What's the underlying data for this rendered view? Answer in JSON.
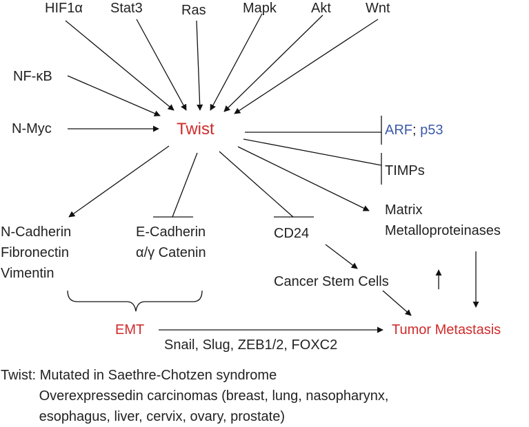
{
  "upstream": [
    "HIF1α",
    "Stat3",
    "Ras",
    "Mapk",
    "Akt",
    "Wnt"
  ],
  "side_inputs": [
    "NF-κB",
    "N-Myc"
  ],
  "center": "Twist",
  "inhibited_targets": {
    "arf_p53_parts": [
      "ARF",
      "; ",
      "p53"
    ],
    "timps": "TIMPs"
  },
  "targets": {
    "n_cadherin_group": "N-Cadherin\nFibronectin\nVimentin",
    "e_cadherin_group": "E-Cadherin\nα/γ Catenin",
    "cd24": "CD24",
    "mmp": "Matrix\nMetalloproteinases",
    "csc": "Cancer Stem Cells"
  },
  "emt": "EMT",
  "emt_factors": "Snail, Slug, ZEB1/2, FOXC2",
  "outcome": "Tumor Metastasis",
  "note": "Twist: Mutated in Saethre-Chotzen syndrome\n          Overexpressedin carcinomas (breast, lung, nasopharynx,\n          esophagus, liver, cervix, ovary, prostate)",
  "colors": {
    "accent_red": "#d02b2b",
    "accent_blue": "#3b5aa8"
  }
}
